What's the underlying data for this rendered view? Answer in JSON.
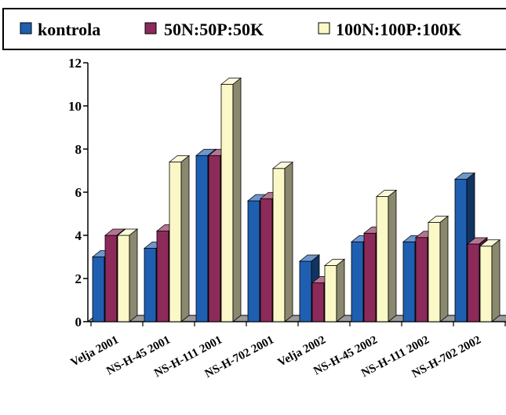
{
  "chart_data": {
    "type": "bar",
    "title": "",
    "xlabel": "",
    "ylabel": "",
    "ylim": [
      0,
      12
    ],
    "yticks": [
      "0",
      "2",
      "4",
      "6",
      "8",
      "10",
      "12"
    ],
    "categories": [
      "Velja 2001",
      "NS-H-45 2001",
      "NS-H-111 2001",
      "NS-H-702 2001",
      "Velja 2002",
      "NS-H-45 2002",
      "NS-H-111 2002",
      "NS-H-702 2002"
    ],
    "series": [
      {
        "name": "kontrola",
        "color": "#1f5fb2",
        "values": [
          3.0,
          3.4,
          7.7,
          5.6,
          2.8,
          3.7,
          3.7,
          6.6
        ]
      },
      {
        "name": "50N:50P:50K",
        "color": "#8c2a5a",
        "values": [
          4.0,
          4.2,
          7.7,
          5.7,
          1.8,
          4.1,
          3.9,
          3.6
        ]
      },
      {
        "name": "100N:100P:100K",
        "color": "#fbf8c8",
        "values": [
          4.0,
          7.4,
          11.0,
          7.1,
          2.6,
          5.8,
          4.6,
          3.5
        ]
      }
    ],
    "legend_position": "top",
    "grid": false,
    "style": "3d"
  }
}
